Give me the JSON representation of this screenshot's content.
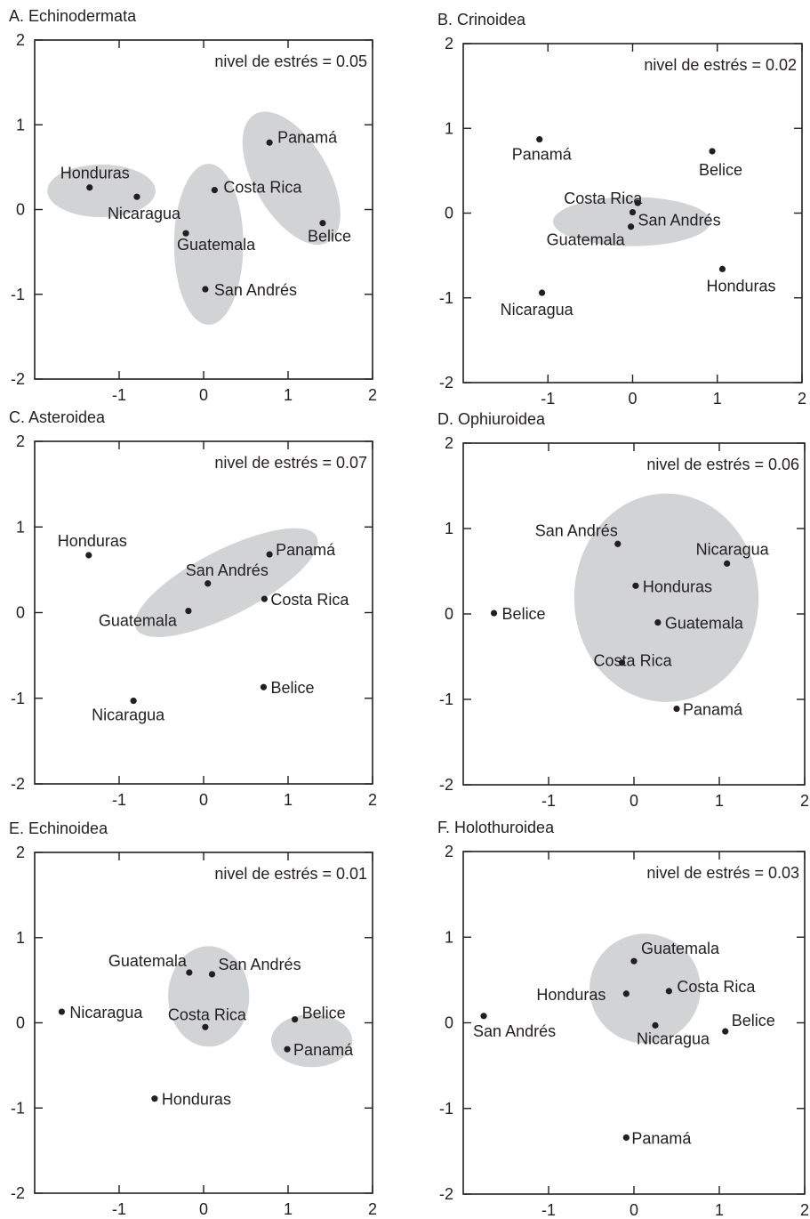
{
  "figure": {
    "colors": {
      "ink": "#231f20",
      "group_fill": "#d1d3d4",
      "background": "#ffffff"
    },
    "ticks": [
      -2,
      -1,
      0,
      1,
      2
    ]
  },
  "chart_data": [
    {
      "type": "scatter",
      "title": "A. Echinodermata",
      "stress_label": "nivel de estrés = 0.05",
      "xlim": [
        -2,
        2
      ],
      "ylim": [
        -2,
        2
      ],
      "xticks": [
        -1,
        0,
        1,
        2
      ],
      "yticks": [
        -2,
        -1,
        0,
        1,
        2
      ],
      "points": [
        {
          "name": "Honduras",
          "x": -1.35,
          "y": 0.26
        },
        {
          "name": "Nicaragua",
          "x": -0.79,
          "y": 0.15
        },
        {
          "name": "Guatemala",
          "x": -0.21,
          "y": -0.28
        },
        {
          "name": "Costa Rica",
          "x": 0.13,
          "y": 0.23
        },
        {
          "name": "San Andrés",
          "x": 0.02,
          "y": -0.94
        },
        {
          "name": "Panamá",
          "x": 0.78,
          "y": 0.79
        },
        {
          "name": "Belice",
          "x": 1.41,
          "y": -0.16
        }
      ],
      "groups": [
        {
          "cx": -1.21,
          "cy": 0.22,
          "rx": 0.64,
          "ry": 0.31,
          "angle": 0
        },
        {
          "cx": 0.06,
          "cy": -0.41,
          "rx": 0.41,
          "ry": 0.95,
          "angle": 0
        },
        {
          "cx": 1.04,
          "cy": 0.37,
          "rx": 0.44,
          "ry": 0.87,
          "angle": -30
        }
      ]
    },
    {
      "type": "scatter",
      "title": "B. Crinoidea",
      "stress_label": "nivel de estrés = 0.02",
      "xlim": [
        -2,
        2
      ],
      "ylim": [
        -2,
        2
      ],
      "xticks": [
        -1,
        0,
        1,
        2
      ],
      "yticks": [
        -2,
        -1,
        0,
        1,
        2
      ],
      "points": [
        {
          "name": "Panamá",
          "x": -1.1,
          "y": 0.87
        },
        {
          "name": "Belice",
          "x": 0.94,
          "y": 0.73
        },
        {
          "name": "Costa Rica",
          "x": 0.06,
          "y": 0.12
        },
        {
          "name": "San Andrés",
          "x": 0.0,
          "y": 0.01
        },
        {
          "name": "Guatemala",
          "x": -0.02,
          "y": -0.16
        },
        {
          "name": "Honduras",
          "x": 1.06,
          "y": -0.66
        },
        {
          "name": "Nicaragua",
          "x": -1.07,
          "y": -0.94
        }
      ],
      "groups": [
        {
          "cx": -0.01,
          "cy": -0.1,
          "rx": 0.93,
          "ry": 0.29,
          "angle": 0
        }
      ]
    },
    {
      "type": "scatter",
      "title": "C. Asteroidea",
      "stress_label": "nivel de estrés = 0.07",
      "xlim": [
        -2,
        2
      ],
      "ylim": [
        -2,
        2
      ],
      "xticks": [
        -1,
        0,
        1,
        2
      ],
      "yticks": [
        -2,
        -1,
        0,
        1,
        2
      ],
      "points": [
        {
          "name": "Honduras",
          "x": -1.36,
          "y": 0.67
        },
        {
          "name": "Panamá",
          "x": 0.78,
          "y": 0.68
        },
        {
          "name": "San Andrés",
          "x": 0.05,
          "y": 0.34
        },
        {
          "name": "Costa Rica",
          "x": 0.72,
          "y": 0.16
        },
        {
          "name": "Guatemala",
          "x": -0.18,
          "y": 0.02
        },
        {
          "name": "Belice",
          "x": 0.71,
          "y": -0.87
        },
        {
          "name": "Nicaragua",
          "x": -0.83,
          "y": -1.03
        }
      ],
      "groups": [
        {
          "cx": 0.27,
          "cy": 0.35,
          "rx": 1.2,
          "ry": 0.38,
          "angle": -27
        }
      ]
    },
    {
      "type": "scatter",
      "title": "D. Ophiuroidea",
      "stress_label": "nivel de estrés = 0.06",
      "xlim": [
        -2,
        2
      ],
      "ylim": [
        -2,
        2
      ],
      "xticks": [
        -1,
        0,
        1,
        2
      ],
      "yticks": [
        -2,
        -1,
        0,
        1,
        2
      ],
      "points": [
        {
          "name": "San Andrés",
          "x": -0.19,
          "y": 0.82
        },
        {
          "name": "Nicaragua",
          "x": 1.09,
          "y": 0.59
        },
        {
          "name": "Honduras",
          "x": 0.02,
          "y": 0.33
        },
        {
          "name": "Belice",
          "x": -1.64,
          "y": 0.01
        },
        {
          "name": "Guatemala",
          "x": 0.28,
          "y": -0.1
        },
        {
          "name": "Costa Rica",
          "x": -0.14,
          "y": -0.57
        },
        {
          "name": "Panamá",
          "x": 0.5,
          "y": -1.11
        }
      ],
      "groups": [
        {
          "cx": 0.38,
          "cy": 0.19,
          "rx": 1.08,
          "ry": 1.22,
          "angle": 0
        }
      ]
    },
    {
      "type": "scatter",
      "title": "E. Echinoidea",
      "stress_label": "nivel de estrés = 0.01",
      "xlim": [
        -2,
        2
      ],
      "ylim": [
        -2,
        2
      ],
      "xticks": [
        -1,
        0,
        1,
        2
      ],
      "yticks": [
        -2,
        -1,
        0,
        1,
        2
      ],
      "points": [
        {
          "name": "Guatemala",
          "x": -0.17,
          "y": 0.59
        },
        {
          "name": "San Andrés",
          "x": 0.1,
          "y": 0.57
        },
        {
          "name": "Nicaragua",
          "x": -1.68,
          "y": 0.13
        },
        {
          "name": "Costa Rica",
          "x": 0.02,
          "y": -0.05
        },
        {
          "name": "Belice",
          "x": 1.08,
          "y": 0.04
        },
        {
          "name": "Panamá",
          "x": 0.99,
          "y": -0.31
        },
        {
          "name": "Honduras",
          "x": -0.58,
          "y": -0.89
        }
      ],
      "groups": [
        {
          "cx": 0.06,
          "cy": 0.31,
          "rx": 0.48,
          "ry": 0.59,
          "angle": 0
        },
        {
          "cx": 1.28,
          "cy": -0.21,
          "rx": 0.48,
          "ry": 0.31,
          "angle": 0
        }
      ]
    },
    {
      "type": "scatter",
      "title": "F. Holothuroidea",
      "stress_label": "nivel de estrés = 0.03",
      "xlim": [
        -2,
        2
      ],
      "ylim": [
        -2,
        2
      ],
      "xticks": [
        -1,
        0,
        1,
        2
      ],
      "yticks": [
        -2,
        -1,
        0,
        1,
        2
      ],
      "points": [
        {
          "name": "Guatemala",
          "x": 0.0,
          "y": 0.72
        },
        {
          "name": "Honduras",
          "x": -0.09,
          "y": 0.34
        },
        {
          "name": "Costa Rica",
          "x": 0.41,
          "y": 0.37
        },
        {
          "name": "San Andrés",
          "x": -1.76,
          "y": 0.08
        },
        {
          "name": "Nicaragua",
          "x": 0.25,
          "y": -0.03
        },
        {
          "name": "Belice",
          "x": 1.07,
          "y": -0.1
        },
        {
          "name": "Panamá",
          "x": -0.09,
          "y": -1.34
        }
      ],
      "groups": [
        {
          "cx": 0.13,
          "cy": 0.4,
          "rx": 0.65,
          "ry": 0.64,
          "angle": 0
        }
      ]
    }
  ]
}
